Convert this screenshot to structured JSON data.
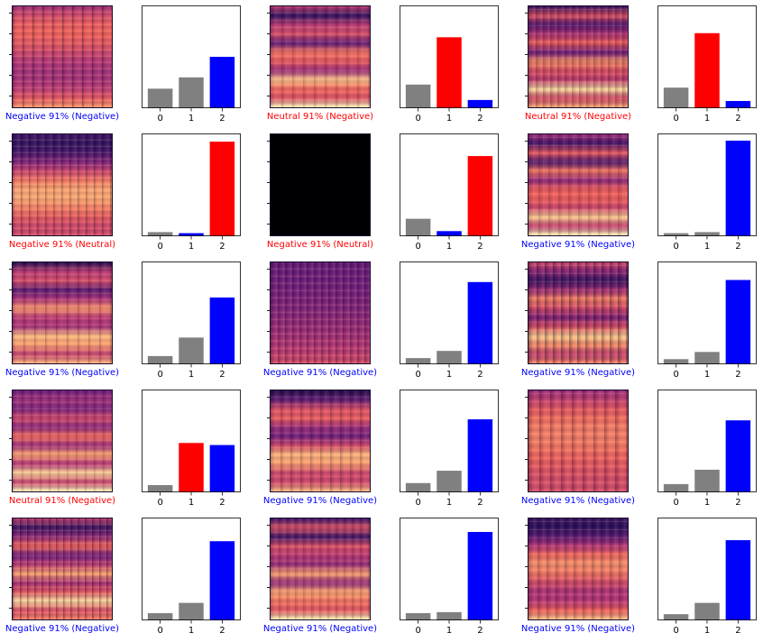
{
  "colors": {
    "correct": "#0000ff",
    "wrong": "#ff0000",
    "other": "#808080",
    "spectrogram_palette": [
      "#000004",
      "#2c115f",
      "#721f81",
      "#b73779",
      "#f1605d",
      "#feb078",
      "#fcfdbf"
    ]
  },
  "panels": [
    {
      "caption": "Negative 91% (Negative)",
      "caption_color": "#0000ff",
      "predicted": 2,
      "true": 2,
      "blank": false,
      "chart_data": {
        "type": "bar",
        "categories": [
          "0",
          "1",
          "2"
        ],
        "values": [
          0.19,
          0.3,
          0.5
        ],
        "ylim": [
          0,
          1
        ]
      }
    },
    {
      "caption": "Neutral 91% (Negative)",
      "caption_color": "#ff0000",
      "predicted": 1,
      "true": 2,
      "blank": false,
      "chart_data": {
        "type": "bar",
        "categories": [
          "0",
          "1",
          "2"
        ],
        "values": [
          0.23,
          0.69,
          0.08
        ],
        "ylim": [
          0,
          1
        ]
      }
    },
    {
      "caption": "Neutral 91% (Negative)",
      "caption_color": "#ff0000",
      "predicted": 1,
      "true": 2,
      "blank": false,
      "chart_data": {
        "type": "bar",
        "categories": [
          "0",
          "1",
          "2"
        ],
        "values": [
          0.2,
          0.73,
          0.07
        ],
        "ylim": [
          0,
          1
        ]
      }
    },
    {
      "caption": "Negative 91% (Neutral)",
      "caption_color": "#ff0000",
      "predicted": 2,
      "true": 1,
      "blank": false,
      "chart_data": {
        "type": "bar",
        "categories": [
          "0",
          "1",
          "2"
        ],
        "values": [
          0.04,
          0.03,
          0.92
        ],
        "ylim": [
          0,
          1
        ]
      }
    },
    {
      "caption": "Negative 91% (Neutral)",
      "caption_color": "#ff0000",
      "predicted": 2,
      "true": 1,
      "blank": true,
      "chart_data": {
        "type": "bar",
        "categories": [
          "0",
          "1",
          "2"
        ],
        "values": [
          0.17,
          0.05,
          0.78
        ],
        "ylim": [
          0,
          1
        ]
      }
    },
    {
      "caption": "Negative 91% (Negative)",
      "caption_color": "#0000ff",
      "predicted": 2,
      "true": 2,
      "blank": false,
      "chart_data": {
        "type": "bar",
        "categories": [
          "0",
          "1",
          "2"
        ],
        "values": [
          0.03,
          0.04,
          0.93
        ],
        "ylim": [
          0,
          1
        ]
      }
    },
    {
      "caption": "Negative 91% (Negative)",
      "caption_color": "#0000ff",
      "predicted": 2,
      "true": 2,
      "blank": false,
      "chart_data": {
        "type": "bar",
        "categories": [
          "0",
          "1",
          "2"
        ],
        "values": [
          0.08,
          0.26,
          0.65
        ],
        "ylim": [
          0,
          1
        ]
      }
    },
    {
      "caption": "Negative 91% (Negative)",
      "caption_color": "#0000ff",
      "predicted": 2,
      "true": 2,
      "blank": false,
      "chart_data": {
        "type": "bar",
        "categories": [
          "0",
          "1",
          "2"
        ],
        "values": [
          0.06,
          0.13,
          0.8
        ],
        "ylim": [
          0,
          1
        ]
      }
    },
    {
      "caption": "Negative 91% (Negative)",
      "caption_color": "#0000ff",
      "predicted": 2,
      "true": 2,
      "blank": false,
      "chart_data": {
        "type": "bar",
        "categories": [
          "0",
          "1",
          "2"
        ],
        "values": [
          0.05,
          0.12,
          0.82
        ],
        "ylim": [
          0,
          1
        ]
      }
    },
    {
      "caption": "Neutral 91% (Negative)",
      "caption_color": "#ff0000",
      "predicted": 1,
      "true": 2,
      "blank": false,
      "chart_data": {
        "type": "bar",
        "categories": [
          "0",
          "1",
          "2"
        ],
        "values": [
          0.07,
          0.48,
          0.46
        ],
        "ylim": [
          0,
          1
        ]
      }
    },
    {
      "caption": "Negative 91% (Negative)",
      "caption_color": "#0000ff",
      "predicted": 2,
      "true": 2,
      "blank": false,
      "chart_data": {
        "type": "bar",
        "categories": [
          "0",
          "1",
          "2"
        ],
        "values": [
          0.09,
          0.21,
          0.71
        ],
        "ylim": [
          0,
          1
        ]
      }
    },
    {
      "caption": "Negative 91% (Negative)",
      "caption_color": "#0000ff",
      "predicted": 2,
      "true": 2,
      "blank": false,
      "chart_data": {
        "type": "bar",
        "categories": [
          "0",
          "1",
          "2"
        ],
        "values": [
          0.08,
          0.22,
          0.7
        ],
        "ylim": [
          0,
          1
        ]
      }
    },
    {
      "caption": "Negative 91% (Negative)",
      "caption_color": "#0000ff",
      "predicted": 2,
      "true": 2,
      "blank": false,
      "chart_data": {
        "type": "bar",
        "categories": [
          "0",
          "1",
          "2"
        ],
        "values": [
          0.07,
          0.17,
          0.77
        ],
        "ylim": [
          0,
          1
        ]
      }
    },
    {
      "caption": "Negative 91% (Negative)",
      "caption_color": "#0000ff",
      "predicted": 2,
      "true": 2,
      "blank": false,
      "chart_data": {
        "type": "bar",
        "categories": [
          "0",
          "1",
          "2"
        ],
        "values": [
          0.07,
          0.08,
          0.86
        ],
        "ylim": [
          0,
          1
        ]
      }
    },
    {
      "caption": "Negative 91% (Negative)",
      "caption_color": "#0000ff",
      "predicted": 2,
      "true": 2,
      "blank": false,
      "chart_data": {
        "type": "bar",
        "categories": [
          "0",
          "1",
          "2"
        ],
        "values": [
          0.06,
          0.17,
          0.78
        ],
        "ylim": [
          0,
          1
        ]
      }
    }
  ]
}
